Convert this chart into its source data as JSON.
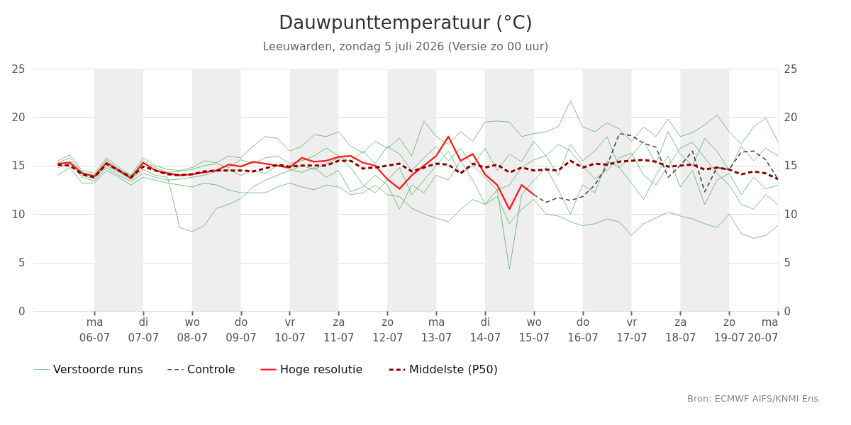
{
  "chart_data": {
    "type": "line",
    "title": "Dauwpunttemperatuur (°C)",
    "subtitle": "Leeuwarden, zondag  5 juli 2026 (Versie zo 00 uur)",
    "annotations": [
      "Bron: ECMWF AIFS/KNMI Ens"
    ],
    "x": [
      "2026-07-05T06:00",
      "2026-07-05T12:00",
      "2026-07-05T18:00",
      "2026-07-06T00:00",
      "2026-07-06T06:00",
      "2026-07-06T12:00",
      "2026-07-06T18:00",
      "2026-07-07T00:00",
      "2026-07-07T06:00",
      "2026-07-07T12:00",
      "2026-07-07T18:00",
      "2026-07-08T00:00",
      "2026-07-08T06:00",
      "2026-07-08T12:00",
      "2026-07-08T18:00",
      "2026-07-09T00:00",
      "2026-07-09T06:00",
      "2026-07-09T12:00",
      "2026-07-09T18:00",
      "2026-07-10T00:00",
      "2026-07-10T06:00",
      "2026-07-10T12:00",
      "2026-07-10T18:00",
      "2026-07-11T00:00",
      "2026-07-11T06:00",
      "2026-07-11T12:00",
      "2026-07-11T18:00",
      "2026-07-12T00:00",
      "2026-07-12T06:00",
      "2026-07-12T12:00",
      "2026-07-12T18:00",
      "2026-07-13T00:00",
      "2026-07-13T06:00",
      "2026-07-13T12:00",
      "2026-07-13T18:00",
      "2026-07-14T00:00",
      "2026-07-14T06:00",
      "2026-07-14T12:00",
      "2026-07-14T18:00",
      "2026-07-15T00:00",
      "2026-07-15T06:00",
      "2026-07-15T12:00",
      "2026-07-15T18:00",
      "2026-07-16T00:00",
      "2026-07-16T06:00",
      "2026-07-16T12:00",
      "2026-07-16T18:00",
      "2026-07-17T00:00",
      "2026-07-17T06:00",
      "2026-07-17T12:00",
      "2026-07-17T18:00",
      "2026-07-18T00:00",
      "2026-07-18T06:00",
      "2026-07-18T12:00",
      "2026-07-18T18:00",
      "2026-07-19T00:00",
      "2026-07-19T06:00",
      "2026-07-19T12:00",
      "2026-07-19T18:00",
      "2026-07-20T00:00"
    ],
    "series": [
      {
        "name": "Verstoorde runs",
        "color": "#3a9e4a",
        "values": [
          15.0,
          15.5,
          14.0,
          13.6,
          15.0,
          14.3,
          13.6,
          14.6,
          14.0,
          13.8,
          8.6,
          8.2,
          8.8,
          10.6,
          11.0,
          11.6,
          12.8,
          13.5,
          14.0,
          14.5,
          15.0,
          14.6,
          15.2,
          15.8,
          14.8,
          13.0,
          12.2,
          13.5,
          14.8,
          12.0,
          13.5,
          15.0,
          16.5,
          14.2,
          15.0,
          13.8,
          12.5,
          13.0,
          14.8,
          15.6,
          16.0,
          17.2,
          16.5,
          15.0,
          13.6,
          14.5,
          15.8,
          16.3,
          14.0,
          13.0,
          15.0,
          16.8,
          17.4,
          15.8,
          14.2,
          13.0,
          11.0,
          10.5,
          12.0,
          11.0
        ]
      },
      {
        "color": "#3a9e4a",
        "values": [
          15.5,
          16.1,
          14.5,
          14.2,
          15.8,
          14.8,
          14.0,
          15.8,
          15.0,
          14.6,
          14.5,
          14.8,
          15.5,
          15.3,
          16.0,
          15.8,
          17.0,
          18.0,
          17.8,
          16.5,
          17.0,
          18.2,
          18.0,
          18.5,
          17.0,
          16.3,
          17.5,
          16.8,
          17.8,
          16.0,
          19.6,
          18.0,
          17.2,
          18.5,
          17.5,
          19.5,
          19.6,
          19.5,
          18.0,
          18.3,
          18.5,
          19.0,
          21.7,
          19.0,
          18.5,
          19.4,
          18.8,
          17.5,
          19.0,
          18.0,
          19.8,
          18.0,
          18.4,
          19.2,
          20.2,
          18.5,
          17.2,
          19.0,
          19.9,
          17.5
        ]
      },
      {
        "color": "#3a9e4a",
        "values": [
          14.8,
          15.2,
          13.8,
          13.4,
          14.8,
          14.0,
          13.4,
          14.2,
          13.8,
          13.5,
          13.6,
          13.8,
          14.0,
          14.4,
          14.6,
          14.0,
          14.5,
          14.2,
          15.0,
          14.6,
          14.3,
          14.8,
          13.8,
          14.5,
          12.3,
          12.8,
          14.0,
          13.0,
          10.5,
          13.0,
          12.2,
          14.0,
          13.5,
          15.5,
          13.5,
          11.0,
          12.5,
          4.3,
          12.0,
          13.5,
          14.8,
          12.5,
          10.0,
          13.0,
          12.2,
          15.5,
          14.8,
          13.2,
          11.5,
          14.0,
          16.0,
          12.8,
          14.5,
          11.0,
          13.5,
          14.2,
          12.0,
          13.8,
          12.6,
          13.0
        ]
      },
      {
        "color": "#3a9e4a",
        "values": [
          14.0,
          14.8,
          13.2,
          13.2,
          14.5,
          13.8,
          13.0,
          13.8,
          13.5,
          13.2,
          13.0,
          12.8,
          13.2,
          13.0,
          12.5,
          12.2,
          12.2,
          12.2,
          12.8,
          13.2,
          12.8,
          12.5,
          13.0,
          12.8,
          12.0,
          12.2,
          13.0,
          12.0,
          11.8,
          10.6,
          10.0,
          9.6,
          9.2,
          10.5,
          11.5,
          11.0,
          11.8,
          9.0,
          10.5,
          11.5,
          10.0,
          9.8,
          9.2,
          8.8,
          9.0,
          9.5,
          9.2,
          7.8,
          9.0,
          9.6,
          10.2,
          9.8,
          9.5,
          9.0,
          8.6,
          10.0,
          8.0,
          7.5,
          7.8,
          8.8
        ]
      },
      {
        "color": "#3a9e4a",
        "values": [
          15.3,
          15.8,
          14.3,
          14.0,
          15.6,
          14.6,
          13.9,
          15.5,
          14.8,
          14.3,
          14.4,
          14.6,
          15.0,
          15.2,
          14.8,
          15.6,
          15.2,
          15.8,
          16.0,
          15.2,
          15.5,
          16.0,
          16.8,
          16.0,
          15.4,
          16.5,
          15.2,
          17.0,
          16.2,
          14.5,
          15.8,
          17.0,
          15.5,
          16.8,
          15.0,
          16.8,
          14.5,
          16.2,
          15.4,
          17.5,
          16.0,
          14.0,
          17.2,
          15.5,
          16.5,
          18.0,
          14.8,
          16.0,
          17.5,
          15.2,
          18.5,
          16.2,
          15.0,
          17.8,
          16.5,
          14.5,
          17.0,
          15.5,
          16.8,
          16.0
        ]
      },
      {
        "name": "Controle",
        "color": "#1a1a1a",
        "line_style": "dashed",
        "values": [
          null,
          null,
          null,
          null,
          null,
          null,
          null,
          null,
          null,
          null,
          null,
          null,
          null,
          null,
          null,
          null,
          null,
          null,
          null,
          null,
          null,
          null,
          null,
          null,
          null,
          null,
          null,
          null,
          null,
          null,
          null,
          null,
          null,
          null,
          null,
          null,
          null,
          null,
          null,
          12.0,
          11.2,
          11.7,
          11.4,
          11.8,
          13.0,
          15.0,
          18.3,
          18.1,
          17.3,
          16.9,
          13.8,
          15.0,
          16.5,
          12.3,
          14.8,
          14.6,
          16.4,
          16.5,
          15.6,
          13.6
        ]
      },
      {
        "name": "Hoge resolutie",
        "color": "#ff0000",
        "line_style": "solid",
        "values": [
          15.2,
          15.3,
          14.2,
          13.9,
          15.3,
          14.5,
          13.7,
          15.3,
          14.5,
          14.2,
          14.0,
          14.1,
          14.3,
          14.5,
          15.1,
          14.9,
          15.4,
          15.2,
          15.0,
          14.8,
          15.8,
          15.4,
          15.5,
          15.9,
          16.0,
          15.3,
          15.0,
          13.6,
          12.6,
          14.0,
          15.0,
          16.0,
          18.0,
          15.5,
          16.2,
          14.1,
          13.0,
          10.5,
          13.0,
          12.0,
          null,
          null,
          null,
          null,
          null,
          null,
          null,
          null,
          null,
          null,
          null,
          null,
          null,
          null,
          null,
          null,
          null,
          null,
          null,
          null
        ]
      },
      {
        "name": "Middelste (P50)",
        "color": "#8b0000",
        "line_style": "dashed",
        "values": [
          15.1,
          15.0,
          14.1,
          13.8,
          15.2,
          14.5,
          13.8,
          14.9,
          14.5,
          14.1,
          14.0,
          14.1,
          14.4,
          14.5,
          14.5,
          14.5,
          14.4,
          14.7,
          15.1,
          14.9,
          15.0,
          15.0,
          15.0,
          15.5,
          15.5,
          14.7,
          14.8,
          15.0,
          15.2,
          14.4,
          14.8,
          15.2,
          15.1,
          14.2,
          15.2,
          14.8,
          15.1,
          14.3,
          14.8,
          14.5,
          14.6,
          14.5,
          15.5,
          14.8,
          15.2,
          15.1,
          15.4,
          15.5,
          15.6,
          15.4,
          14.9,
          15.0,
          15.1,
          14.6,
          14.8,
          14.6,
          14.1,
          14.4,
          14.2,
          13.6
        ]
      }
    ],
    "xlim": [
      "2026-07-04T18:00",
      "2026-07-20T00:00"
    ],
    "xticks": [
      {
        "value": "2026-07-06",
        "label": "ma 06-07"
      },
      {
        "value": "2026-07-07",
        "label": "di 07-07"
      },
      {
        "value": "2026-07-08",
        "label": "wo 08-07"
      },
      {
        "value": "2026-07-09",
        "label": "do 09-07"
      },
      {
        "value": "2026-07-10",
        "label": "vr 10-07"
      },
      {
        "value": "2026-07-11",
        "label": "za 11-07"
      },
      {
        "value": "2026-07-12",
        "label": "zo 12-07"
      },
      {
        "value": "2026-07-13",
        "label": "ma 13-07"
      },
      {
        "value": "2026-07-14",
        "label": "di 14-07"
      },
      {
        "value": "2026-07-15",
        "label": "wo 15-07"
      },
      {
        "value": "2026-07-16",
        "label": "do 16-07"
      },
      {
        "value": "2026-07-17",
        "label": "vr 17-07"
      },
      {
        "value": "2026-07-18",
        "label": "za 18-07"
      },
      {
        "value": "2026-07-19",
        "label": "zo 19-07"
      },
      {
        "value": "2026-07-20",
        "label": "ma 20-07"
      }
    ],
    "ylim": [
      0,
      25
    ],
    "yticks": [
      0,
      5,
      10,
      15,
      20,
      25
    ],
    "y2lim": [
      0,
      25
    ],
    "y2ticks": [
      0,
      5,
      10,
      15,
      20,
      25
    ],
    "bands": [
      {
        "axis": "x",
        "from": "2026-07-06",
        "to": "2026-07-07",
        "color": "#eeeeee"
      },
      {
        "axis": "x",
        "from": "2026-07-08",
        "to": "2026-07-09",
        "color": "#eeeeee"
      },
      {
        "axis": "x",
        "from": "2026-07-10",
        "to": "2026-07-11",
        "color": "#eeeeee"
      },
      {
        "axis": "x",
        "from": "2026-07-12",
        "to": "2026-07-13",
        "color": "#eeeeee"
      },
      {
        "axis": "x",
        "from": "2026-07-14",
        "to": "2026-07-15",
        "color": "#eeeeee"
      },
      {
        "axis": "x",
        "from": "2026-07-16",
        "to": "2026-07-17",
        "color": "#eeeeee"
      },
      {
        "axis": "x",
        "from": "2026-07-18",
        "to": "2026-07-19",
        "color": "#eeeeee"
      }
    ],
    "grid": "y",
    "legend": "bottom",
    "marker": "none"
  }
}
